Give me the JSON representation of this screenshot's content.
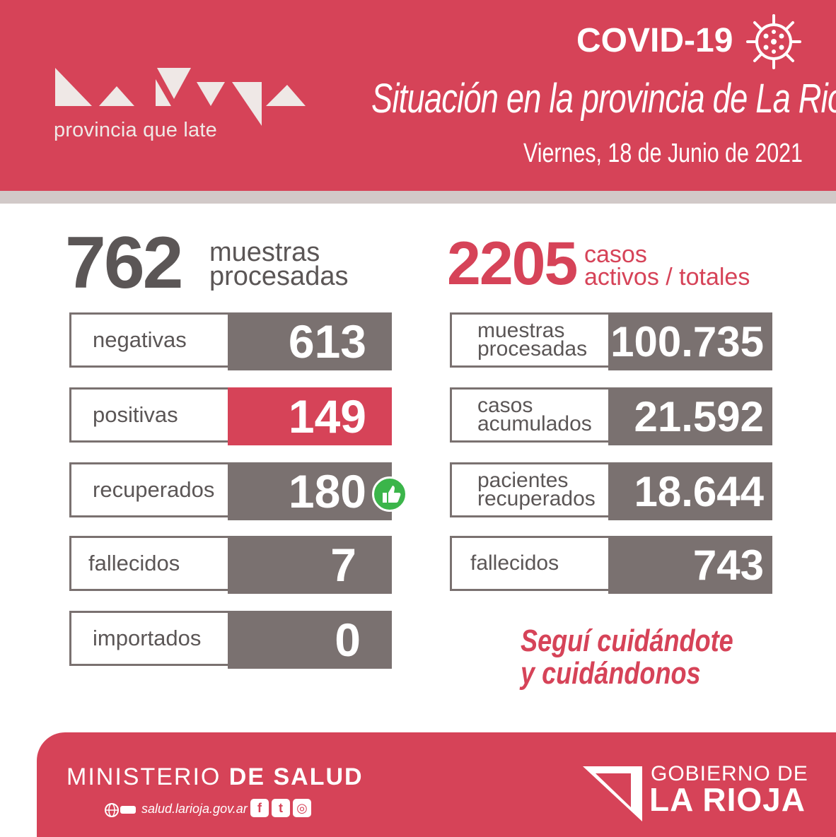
{
  "header": {
    "logo_text": "provincia que late",
    "covid_title": "COVID-19",
    "subtitle": "Situación en la provincia de La Rioja",
    "date": "Viernes,  18 de Junio de 2021"
  },
  "left": {
    "big_value": "762",
    "big_label_1": "muestras",
    "big_label_2": "procesadas",
    "rows": [
      {
        "label": "negativas",
        "value": "613"
      },
      {
        "label": "positivas",
        "value": "149"
      },
      {
        "label": "recuperados",
        "value": "180"
      },
      {
        "label": "fallecidos",
        "value": "7"
      },
      {
        "label": "importados",
        "value": "0"
      }
    ]
  },
  "right": {
    "big_value": "2205",
    "big_label_1": "casos",
    "big_label_2": "activos / totales",
    "rows": [
      {
        "label_1": "muestras",
        "label_2": "procesadas",
        "value": "100.735"
      },
      {
        "label_1": "casos",
        "label_2": "acumulados",
        "value": "21.592"
      },
      {
        "label_1": "pacientes",
        "label_2": "recuperados",
        "value": "18.644"
      },
      {
        "label_1": "fallecidos",
        "label_2": "",
        "value": "743"
      }
    ]
  },
  "slogan": {
    "line1": "Seguí cuidándote",
    "line2": "y cuidándonos"
  },
  "footer": {
    "ministerio": "MINISTERIO",
    "de_salud": "DE SALUD",
    "website": "salud.larioja.gov.ar",
    "gobierno_de": "GOBIERNO DE",
    "la_rioja": "LA RIOJA"
  },
  "colors": {
    "accent_red": "#d64358",
    "dark_gray": "#7a7170",
    "text_gray": "#5b5656"
  }
}
